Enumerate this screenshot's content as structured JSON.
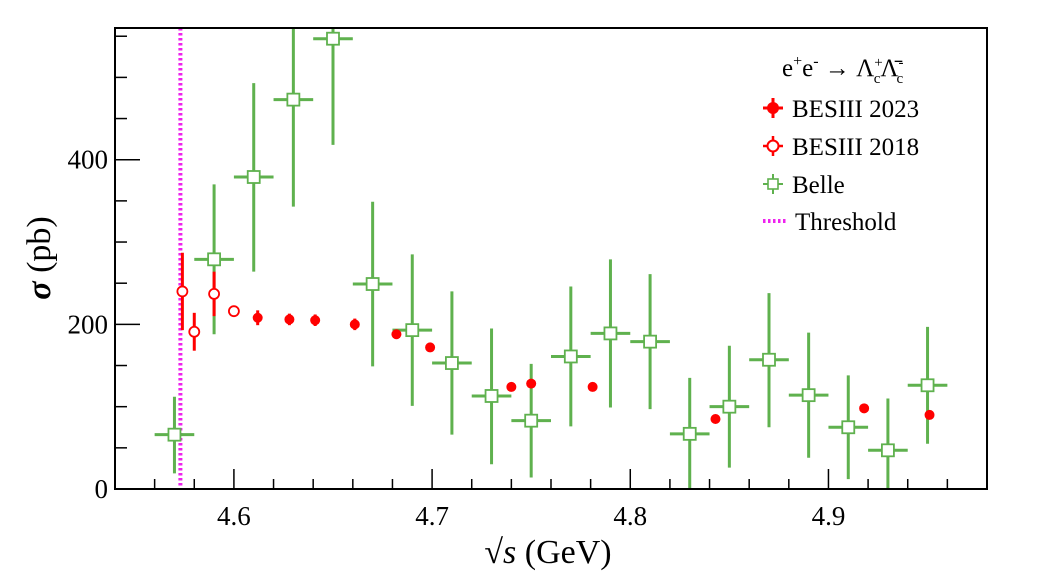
{
  "chart_data": {
    "type": "scatter",
    "title": "",
    "xlabel_prefix": "√",
    "xlabel_var": "s",
    "xlabel_unit": " (GeV)",
    "ylabel_symbol": "σ",
    "ylabel_unit": " (pb)",
    "xlim": [
      4.54,
      4.98
    ],
    "ylim": [
      0,
      560
    ],
    "x_major_ticks": [
      4.6,
      4.7,
      4.8,
      4.9
    ],
    "x_tick_labels": [
      "4.6",
      "4.7",
      "4.8",
      "4.9"
    ],
    "x_minor_step": 0.02,
    "y_major_ticks": [
      0,
      200,
      400
    ],
    "y_tick_labels": [
      "0",
      "200",
      "400"
    ],
    "y_minor_step": 50,
    "grid": false,
    "legend_position": "top-right",
    "legend_title": {
      "base": "e",
      "sup1": "+",
      "base2": "e",
      "sup2": "-",
      "arrow": " → ",
      "p1": "Λ",
      "p1_sup": "+",
      "p1_sub": "c",
      "p2": "Λ̄",
      "p2_sup": "-",
      "p2_sub": "c"
    },
    "threshold": {
      "name": "Threshold",
      "x": 4.573,
      "color": "#ee22ee"
    },
    "series": [
      {
        "name": "BESIII 2023",
        "marker": "filled-circle",
        "color": "#ff0000",
        "points": [
          {
            "x": 4.612,
            "y": 208,
            "yerr_lo": 9,
            "yerr_hi": 9
          },
          {
            "x": 4.628,
            "y": 206,
            "yerr_lo": 7,
            "yerr_hi": 7
          },
          {
            "x": 4.641,
            "y": 205,
            "yerr_lo": 7,
            "yerr_hi": 7
          },
          {
            "x": 4.661,
            "y": 200,
            "yerr_lo": 7,
            "yerr_hi": 7
          },
          {
            "x": 4.682,
            "y": 188,
            "yerr_lo": 5,
            "yerr_hi": 5
          },
          {
            "x": 4.699,
            "y": 172,
            "yerr_lo": 5,
            "yerr_hi": 5
          },
          {
            "x": 4.74,
            "y": 124,
            "yerr_lo": 5,
            "yerr_hi": 5
          },
          {
            "x": 4.75,
            "y": 128,
            "yerr_lo": 5,
            "yerr_hi": 5
          },
          {
            "x": 4.781,
            "y": 124,
            "yerr_lo": 5,
            "yerr_hi": 5
          },
          {
            "x": 4.843,
            "y": 85,
            "yerr_lo": 5,
            "yerr_hi": 5
          },
          {
            "x": 4.918,
            "y": 98,
            "yerr_lo": 5,
            "yerr_hi": 5
          },
          {
            "x": 4.951,
            "y": 90,
            "yerr_lo": 5,
            "yerr_hi": 5
          }
        ]
      },
      {
        "name": "BESIII 2018",
        "marker": "open-circle",
        "color": "#ff0000",
        "points": [
          {
            "x": 4.574,
            "y": 240,
            "yerr_lo": 47,
            "yerr_hi": 47
          },
          {
            "x": 4.58,
            "y": 191,
            "yerr_lo": 23,
            "yerr_hi": 23
          },
          {
            "x": 4.59,
            "y": 237,
            "yerr_lo": 27,
            "yerr_hi": 27
          },
          {
            "x": 4.6,
            "y": 216,
            "yerr_lo": 6,
            "yerr_hi": 6
          }
        ]
      },
      {
        "name": "Belle",
        "marker": "open-square",
        "color": "#5fb14e",
        "points": [
          {
            "x": 4.57,
            "y": 66,
            "xerr": 0.01,
            "yerr_lo": 47,
            "yerr_hi": 46
          },
          {
            "x": 4.59,
            "y": 279,
            "xerr": 0.01,
            "yerr_lo": 91,
            "yerr_hi": 91
          },
          {
            "x": 4.61,
            "y": 379,
            "xerr": 0.01,
            "yerr_lo": 115,
            "yerr_hi": 114
          },
          {
            "x": 4.63,
            "y": 473,
            "xerr": 0.01,
            "yerr_lo": 130,
            "yerr_hi": 130
          },
          {
            "x": 4.65,
            "y": 547,
            "xerr": 0.01,
            "yerr_lo": 129,
            "yerr_hi": 129
          },
          {
            "x": 4.67,
            "y": 249,
            "xerr": 0.01,
            "yerr_lo": 100,
            "yerr_hi": 100
          },
          {
            "x": 4.69,
            "y": 193,
            "xerr": 0.01,
            "yerr_lo": 92,
            "yerr_hi": 92
          },
          {
            "x": 4.71,
            "y": 153,
            "xerr": 0.01,
            "yerr_lo": 87,
            "yerr_hi": 87
          },
          {
            "x": 4.73,
            "y": 113,
            "xerr": 0.01,
            "yerr_lo": 83,
            "yerr_hi": 82
          },
          {
            "x": 4.75,
            "y": 83,
            "xerr": 0.01,
            "yerr_lo": 69,
            "yerr_hi": 69
          },
          {
            "x": 4.77,
            "y": 161,
            "xerr": 0.01,
            "yerr_lo": 85,
            "yerr_hi": 85
          },
          {
            "x": 4.79,
            "y": 189,
            "xerr": 0.01,
            "yerr_lo": 90,
            "yerr_hi": 90
          },
          {
            "x": 4.81,
            "y": 179,
            "xerr": 0.01,
            "yerr_lo": 82,
            "yerr_hi": 82
          },
          {
            "x": 4.83,
            "y": 67,
            "xerr": 0.01,
            "yerr_lo": 68,
            "yerr_hi": 68
          },
          {
            "x": 4.85,
            "y": 100,
            "xerr": 0.01,
            "yerr_lo": 74,
            "yerr_hi": 74
          },
          {
            "x": 4.87,
            "y": 157,
            "xerr": 0.01,
            "yerr_lo": 82,
            "yerr_hi": 81
          },
          {
            "x": 4.89,
            "y": 114,
            "xerr": 0.01,
            "yerr_lo": 76,
            "yerr_hi": 76
          },
          {
            "x": 4.91,
            "y": 75,
            "xerr": 0.01,
            "yerr_lo": 63,
            "yerr_hi": 63
          },
          {
            "x": 4.93,
            "y": 47,
            "xerr": 0.01,
            "yerr_lo": 63,
            "yerr_hi": 63
          },
          {
            "x": 4.95,
            "y": 126,
            "xerr": 0.01,
            "yerr_lo": 71,
            "yerr_hi": 71
          }
        ]
      }
    ]
  }
}
